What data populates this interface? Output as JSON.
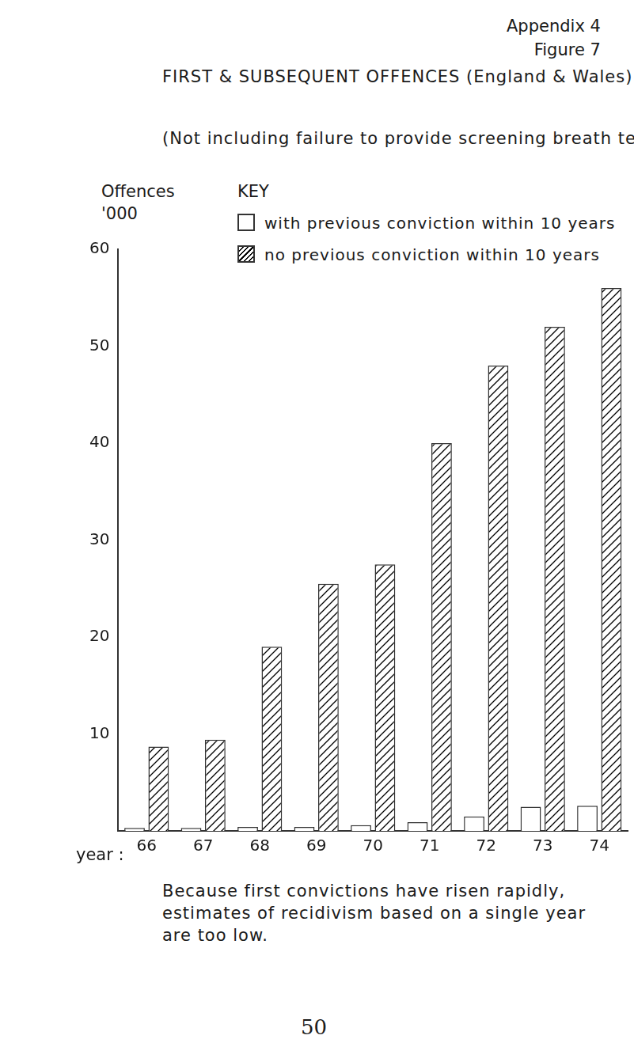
{
  "header": [
    "Appendix 4",
    "Figure 7"
  ],
  "chart_data": {
    "type": "bar",
    "title": "FIRST & SUBSEQUENT OFFENCES (England & Wales).(Home Office).",
    "subtitle": "(Not including failure to provide screening breath test specimen).",
    "ylabel": "Offences '000",
    "xlabel": "year :",
    "legend_title": "KEY",
    "categories": [
      "66",
      "67",
      "68",
      "69",
      "70",
      "71",
      "72",
      "73",
      "74"
    ],
    "series": [
      {
        "name": "with previous conviction within 10 years",
        "color": "#ffffff",
        "values": [
          0.3,
          0.3,
          0.4,
          0.4,
          0.6,
          0.9,
          1.5,
          2.5,
          2.6
        ]
      },
      {
        "name": "no previous conviction within 10 years",
        "color": "#000000",
        "values": [
          8.7,
          9.4,
          19,
          25.5,
          27.5,
          40,
          48,
          52,
          56
        ]
      }
    ],
    "ylim": [
      0,
      60
    ],
    "yticks": [
      10,
      20,
      30,
      40,
      50,
      60
    ],
    "grid": false
  },
  "caption": "Because first convictions have risen rapidly, estimates of recidivism based on a single year are too low.",
  "page_number": "50"
}
